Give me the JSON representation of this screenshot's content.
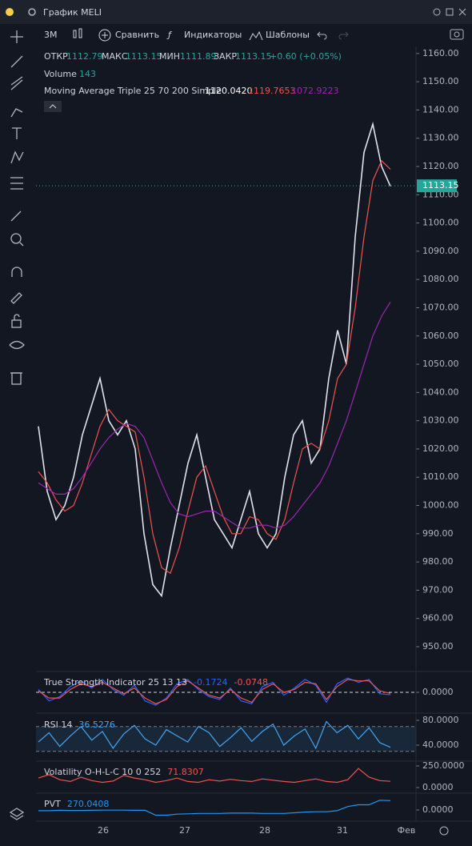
{
  "header": {
    "title": "График MELI",
    "interval": "3M",
    "compare": "Сравнить",
    "indicators": "Индикаторы",
    "templates": "Шаблоны"
  },
  "legend": {
    "open_label": "ОТКР",
    "open": "1112.79",
    "high_label": "МАКС",
    "high": "1113.15",
    "low_label": "МИН",
    "low": "1111.89",
    "close_label": "ЗАКР",
    "close": "1113.15",
    "change": "+0.60 (+0.05%)",
    "volume_label": "Volume",
    "volume": "143",
    "ma_label": "Moving Average Triple 25 70 200 Simple",
    "ma1": "1120.0420",
    "ma2": "1119.7653",
    "ma3": "1072.9223"
  },
  "xaxis_labels": [
    "26",
    "27",
    "28",
    "31",
    "Фев"
  ],
  "chart_data": [
    {
      "type": "line",
      "ylim": [
        941.5,
        1162.5
      ],
      "yticks": [
        {
          "value": 950,
          "label": "950.00"
        },
        {
          "value": 960,
          "label": "960.00"
        },
        {
          "value": 970,
          "label": "970.00"
        },
        {
          "value": 980,
          "label": "980.00"
        },
        {
          "value": 990,
          "label": "990.00"
        },
        {
          "value": 1000,
          "label": "1000.00"
        },
        {
          "value": 1010,
          "label": "1010.00"
        },
        {
          "value": 1020,
          "label": "1020.00"
        },
        {
          "value": 1030,
          "label": "1030.00"
        },
        {
          "value": 1040,
          "label": "1040.00"
        },
        {
          "value": 1050,
          "label": "1050.00"
        },
        {
          "value": 1060,
          "label": "1060.00"
        },
        {
          "value": 1070,
          "label": "1070.00"
        },
        {
          "value": 1080,
          "label": "1080.00"
        },
        {
          "value": 1090,
          "label": "1090.00"
        },
        {
          "value": 1100,
          "label": "1100.00"
        },
        {
          "value": 1110,
          "label": "1110.00"
        },
        {
          "value": 1120,
          "label": "1120.00"
        },
        {
          "value": 1130,
          "label": "1130.00"
        },
        {
          "value": 1140,
          "label": "1140.00"
        },
        {
          "value": 1150,
          "label": "1150.00"
        },
        {
          "value": 1160,
          "label": "1160.00"
        }
      ],
      "last_price": 1113.15,
      "last_price_color": "#26a69a",
      "series": [
        {
          "color": "#e0e3eb",
          "values": [
            1028,
            1005,
            995,
            1000,
            1010,
            1025,
            1035,
            1045,
            1030,
            1025,
            1030,
            1020,
            990,
            972,
            968,
            985,
            1000,
            1015,
            1025,
            1010,
            995,
            990,
            985,
            995,
            1005,
            990,
            985,
            990,
            1010,
            1025,
            1030,
            1015,
            1020,
            1045,
            1062,
            1050,
            1095,
            1125,
            1135,
            1120,
            1113
          ]
        },
        {
          "color": "#ef5350",
          "values": [
            1012,
            1008,
            1002,
            998,
            1000,
            1008,
            1018,
            1028,
            1034,
            1030,
            1028,
            1026,
            1010,
            990,
            978,
            976,
            985,
            998,
            1010,
            1014,
            1005,
            996,
            990,
            990,
            996,
            995,
            990,
            988,
            995,
            1008,
            1020,
            1022,
            1020,
            1030,
            1045,
            1050,
            1070,
            1095,
            1115,
            1122,
            1119
          ]
        },
        {
          "color": "#9c27b0",
          "values": [
            1008,
            1006,
            1004,
            1004,
            1006,
            1010,
            1015,
            1020,
            1024,
            1027,
            1029,
            1028,
            1024,
            1016,
            1008,
            1001,
            997,
            996,
            997,
            998,
            998,
            996,
            994,
            992,
            992,
            993,
            993,
            992,
            993,
            996,
            1000,
            1004,
            1008,
            1014,
            1022,
            1030,
            1040,
            1050,
            1060,
            1067,
            1072
          ]
        }
      ]
    },
    {
      "type": "line",
      "title": "True Strength Indicator 25 13 13",
      "value_texts": [
        "-0.1724",
        "-0.0748"
      ],
      "ylim": [
        -1.4,
        1.4
      ],
      "yticks": [
        {
          "value": 0,
          "label": "0.0000"
        }
      ],
      "series": [
        {
          "color": "#2962ff",
          "values": [
            0.2,
            -0.6,
            -0.3,
            0.4,
            0.8,
            0.3,
            0.9,
            0.2,
            -0.2,
            0.5,
            -0.6,
            -0.9,
            -0.4,
            0.6,
            0.9,
            0.2,
            -0.3,
            -0.5,
            0.3,
            -0.6,
            -0.8,
            0.4,
            0.7,
            -0.2,
            0.3,
            0.9,
            0.5,
            -0.7,
            0.6,
            1.0,
            0.7,
            0.9,
            -0.1,
            -0.17
          ]
        },
        {
          "color": "#ef5350",
          "values": [
            0.1,
            -0.4,
            -0.4,
            0.2,
            0.6,
            0.4,
            0.7,
            0.3,
            -0.1,
            0.3,
            -0.4,
            -0.8,
            -0.5,
            0.4,
            0.8,
            0.3,
            -0.2,
            -0.4,
            0.2,
            -0.4,
            -0.7,
            0.2,
            0.6,
            0.0,
            0.2,
            0.7,
            0.6,
            -0.5,
            0.4,
            0.9,
            0.8,
            0.8,
            0.1,
            -0.07
          ]
        }
      ]
    },
    {
      "type": "line",
      "title": "RSI 14",
      "value_texts": [
        "36.5276"
      ],
      "ylim": [
        15.5,
        89
      ],
      "yticks": [
        {
          "value": 80,
          "label": "80.0000"
        },
        {
          "value": 40,
          "label": "40.0000"
        }
      ],
      "bands": [
        30,
        70
      ],
      "series": [
        {
          "color": "#42a5f5",
          "values": [
            45,
            60,
            38,
            55,
            70,
            48,
            62,
            35,
            58,
            72,
            50,
            40,
            65,
            55,
            45,
            70,
            60,
            38,
            52,
            68,
            46,
            62,
            74,
            40,
            55,
            66,
            35,
            78,
            60,
            72,
            50,
            68,
            44,
            36.5
          ]
        }
      ]
    },
    {
      "type": "line",
      "title": "Volatility O-H-L-C 10 0 252",
      "value_texts": [
        "71.8307"
      ],
      "ylim": [
        -56,
        296
      ],
      "yticks": [
        {
          "value": 250,
          "label": "250.0000"
        },
        {
          "value": 0,
          "label": "0.0000"
        }
      ],
      "series": [
        {
          "color": "#ef5350",
          "values": [
            110,
            150,
            90,
            70,
            120,
            80,
            60,
            75,
            140,
            110,
            90,
            60,
            80,
            110,
            70,
            60,
            90,
            75,
            95,
            80,
            70,
            100,
            85,
            70,
            60,
            80,
            100,
            70,
            60,
            90,
            220,
            120,
            80,
            72
          ]
        }
      ]
    },
    {
      "type": "line",
      "title": "PVT",
      "value_texts": [
        "270.0408"
      ],
      "ylim": [
        -300,
        461
      ],
      "yticks": [
        {
          "value": 0,
          "label": "0.0000"
        }
      ],
      "series": [
        {
          "color": "#2196f3",
          "values": [
            -20,
            -20,
            -10,
            -15,
            -15,
            -10,
            -5,
            -5,
            -5,
            -10,
            -10,
            -150,
            -150,
            -120,
            -110,
            -100,
            -100,
            -100,
            -90,
            -90,
            -90,
            -100,
            -100,
            -100,
            -80,
            -60,
            -50,
            -50,
            -20,
            100,
            150,
            150,
            280,
            270
          ]
        }
      ]
    }
  ]
}
